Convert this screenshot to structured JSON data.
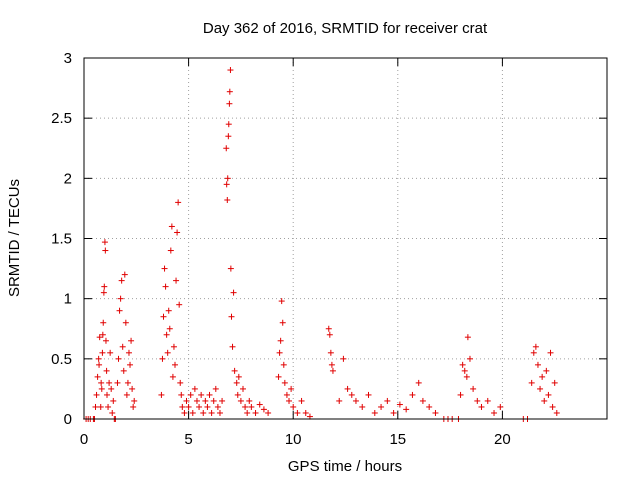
{
  "chart_data": {
    "type": "scatter",
    "title": "Day 362 of 2016, SRMTID for receiver crat",
    "xlabel": "GPS time / hours",
    "ylabel": "SRMTID / TECUs",
    "xlim": [
      0,
      25
    ],
    "ylim": [
      0,
      3
    ],
    "xticks": [
      0,
      5,
      10,
      15,
      20
    ],
    "yticks": [
      0,
      0.5,
      1,
      1.5,
      2,
      2.5,
      3
    ],
    "xtick_labels": [
      "0",
      "5",
      "10",
      "15",
      "20"
    ],
    "ytick_labels": [
      "0",
      "0.5",
      "1",
      "1.5",
      "2",
      "2.5",
      "3"
    ],
    "grid": true,
    "marker": "+",
    "marker_color": "#e00000",
    "series": [
      {
        "name": "SRMTID",
        "points": [
          [
            0.1,
            0
          ],
          [
            0.2,
            0
          ],
          [
            0.3,
            0
          ],
          [
            0.45,
            0
          ],
          [
            0.5,
            0
          ],
          [
            0.55,
            0.1
          ],
          [
            0.6,
            0.2
          ],
          [
            0.65,
            0.35
          ],
          [
            0.7,
            0.5
          ],
          [
            0.72,
            0.45
          ],
          [
            0.75,
            0.68
          ],
          [
            0.8,
            0.1
          ],
          [
            0.82,
            0.3
          ],
          [
            0.85,
            0.25
          ],
          [
            0.88,
            0.55
          ],
          [
            0.9,
            0.7
          ],
          [
            0.92,
            0.8
          ],
          [
            0.95,
            1.05
          ],
          [
            0.97,
            1.1
          ],
          [
            1.0,
            1.47
          ],
          [
            1.02,
            1.4
          ],
          [
            1.05,
            0.65
          ],
          [
            1.08,
            0.4
          ],
          [
            1.1,
            0.2
          ],
          [
            1.15,
            0.1
          ],
          [
            1.2,
            0.3
          ],
          [
            1.25,
            0.55
          ],
          [
            1.3,
            0.25
          ],
          [
            1.35,
            0.05
          ],
          [
            1.4,
            0.15
          ],
          [
            1.45,
            0
          ],
          [
            1.5,
            0
          ],
          [
            1.6,
            0.3
          ],
          [
            1.65,
            0.5
          ],
          [
            1.7,
            0.9
          ],
          [
            1.75,
            1.0
          ],
          [
            1.8,
            1.15
          ],
          [
            1.85,
            0.6
          ],
          [
            1.9,
            0.4
          ],
          [
            1.95,
            1.2
          ],
          [
            2.0,
            0.8
          ],
          [
            2.05,
            0.2
          ],
          [
            2.1,
            0.3
          ],
          [
            2.15,
            0.55
          ],
          [
            2.2,
            0.45
          ],
          [
            2.25,
            0.65
          ],
          [
            2.3,
            0.25
          ],
          [
            2.35,
            0.1
          ],
          [
            2.4,
            0.15
          ],
          [
            3.7,
            0.2
          ],
          [
            3.75,
            0.5
          ],
          [
            3.8,
            0.85
          ],
          [
            3.85,
            1.25
          ],
          [
            3.9,
            1.1
          ],
          [
            3.95,
            0.7
          ],
          [
            4.0,
            0.55
          ],
          [
            4.05,
            0.9
          ],
          [
            4.1,
            0.75
          ],
          [
            4.15,
            1.4
          ],
          [
            4.2,
            1.6
          ],
          [
            4.25,
            0.35
          ],
          [
            4.3,
            0.6
          ],
          [
            4.35,
            0.45
          ],
          [
            4.4,
            1.15
          ],
          [
            4.45,
            1.55
          ],
          [
            4.5,
            1.8
          ],
          [
            4.55,
            0.95
          ],
          [
            4.6,
            0.3
          ],
          [
            4.65,
            0.2
          ],
          [
            4.7,
            0.1
          ],
          [
            4.8,
            0.05
          ],
          [
            4.9,
            0.15
          ],
          [
            5.0,
            0.1
          ],
          [
            5.1,
            0.2
          ],
          [
            5.2,
            0.05
          ],
          [
            5.3,
            0.25
          ],
          [
            5.4,
            0.15
          ],
          [
            5.5,
            0.1
          ],
          [
            5.6,
            0.2
          ],
          [
            5.7,
            0.05
          ],
          [
            5.8,
            0.15
          ],
          [
            5.9,
            0.1
          ],
          [
            6.0,
            0.2
          ],
          [
            6.1,
            0.05
          ],
          [
            6.2,
            0.15
          ],
          [
            6.3,
            0.25
          ],
          [
            6.4,
            0.1
          ],
          [
            6.5,
            0.05
          ],
          [
            6.6,
            0.15
          ],
          [
            6.8,
            2.25
          ],
          [
            6.82,
            1.95
          ],
          [
            6.85,
            1.82
          ],
          [
            6.87,
            2.0
          ],
          [
            6.9,
            2.35
          ],
          [
            6.92,
            2.45
          ],
          [
            6.95,
            2.62
          ],
          [
            6.97,
            2.72
          ],
          [
            7.0,
            2.9
          ],
          [
            7.02,
            1.25
          ],
          [
            7.05,
            0.85
          ],
          [
            7.1,
            0.6
          ],
          [
            7.15,
            1.05
          ],
          [
            7.2,
            0.4
          ],
          [
            7.3,
            0.3
          ],
          [
            7.35,
            0.2
          ],
          [
            7.4,
            0.35
          ],
          [
            7.5,
            0.15
          ],
          [
            7.6,
            0.25
          ],
          [
            7.7,
            0.1
          ],
          [
            7.8,
            0.05
          ],
          [
            7.9,
            0.15
          ],
          [
            8.0,
            0.1
          ],
          [
            8.2,
            0.05
          ],
          [
            8.4,
            0.12
          ],
          [
            8.6,
            0.08
          ],
          [
            8.8,
            0.05
          ],
          [
            9.3,
            0.35
          ],
          [
            9.35,
            0.55
          ],
          [
            9.4,
            0.65
          ],
          [
            9.45,
            0.98
          ],
          [
            9.5,
            0.8
          ],
          [
            9.55,
            0.45
          ],
          [
            9.6,
            0.3
          ],
          [
            9.7,
            0.2
          ],
          [
            9.8,
            0.15
          ],
          [
            9.9,
            0.25
          ],
          [
            10.0,
            0.1
          ],
          [
            10.2,
            0.05
          ],
          [
            10.4,
            0.15
          ],
          [
            10.6,
            0.05
          ],
          [
            10.8,
            0.02
          ],
          [
            11.7,
            0.75
          ],
          [
            11.75,
            0.7
          ],
          [
            11.8,
            0.55
          ],
          [
            11.85,
            0.45
          ],
          [
            11.9,
            0.4
          ],
          [
            12.2,
            0.15
          ],
          [
            12.4,
            0.5
          ],
          [
            12.6,
            0.25
          ],
          [
            12.8,
            0.2
          ],
          [
            13.0,
            0.15
          ],
          [
            13.3,
            0.1
          ],
          [
            13.6,
            0.2
          ],
          [
            13.9,
            0.05
          ],
          [
            14.2,
            0.1
          ],
          [
            14.5,
            0.15
          ],
          [
            14.8,
            0.05
          ],
          [
            15.1,
            0.12
          ],
          [
            15.4,
            0.08
          ],
          [
            15.7,
            0.2
          ],
          [
            16.0,
            0.3
          ],
          [
            16.2,
            0.15
          ],
          [
            16.5,
            0.1
          ],
          [
            16.8,
            0.05
          ],
          [
            17.2,
            0
          ],
          [
            17.4,
            0
          ],
          [
            17.6,
            0
          ],
          [
            17.9,
            0
          ],
          [
            18.0,
            0.2
          ],
          [
            18.1,
            0.45
          ],
          [
            18.2,
            0.4
          ],
          [
            18.3,
            0.35
          ],
          [
            18.35,
            0.68
          ],
          [
            18.45,
            0.5
          ],
          [
            18.6,
            0.25
          ],
          [
            18.8,
            0.15
          ],
          [
            19.0,
            0.1
          ],
          [
            19.3,
            0.15
          ],
          [
            19.6,
            0.05
          ],
          [
            19.9,
            0.1
          ],
          [
            21.0,
            0
          ],
          [
            21.2,
            0
          ],
          [
            21.4,
            0.3
          ],
          [
            21.5,
            0.55
          ],
          [
            21.6,
            0.6
          ],
          [
            21.7,
            0.45
          ],
          [
            21.8,
            0.25
          ],
          [
            21.9,
            0.35
          ],
          [
            22.0,
            0.15
          ],
          [
            22.1,
            0.4
          ],
          [
            22.2,
            0.2
          ],
          [
            22.3,
            0.55
          ],
          [
            22.4,
            0.1
          ],
          [
            22.5,
            0.3
          ],
          [
            22.6,
            0.05
          ]
        ]
      }
    ]
  }
}
